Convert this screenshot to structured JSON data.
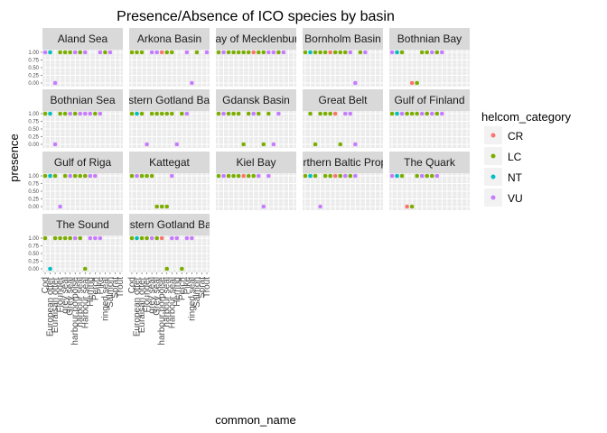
{
  "chart_data": {
    "type": "scatter",
    "title": "Presence/Absence of ICO species by basin",
    "xlabel": "common_name",
    "ylabel": "presence",
    "ylim": [
      0,
      1
    ],
    "y_ticks": [
      "0.00",
      "0.25",
      "0.50",
      "0.75",
      "1.00"
    ],
    "legend_title": "helcom_category",
    "legend_position": "right",
    "grid": true,
    "categories": [
      "Cod",
      "European otter",
      "Euraisan otter",
      "Flounder",
      "grey seal",
      "Grey seal",
      "harbour porpoise",
      "harbour seal",
      "Harbour seal",
      "Herring",
      "Perch",
      "Pike",
      "ringed seal",
      "Salmon",
      "Sprat",
      "Trout"
    ],
    "colors": {
      "CR": "#F8766D",
      "LC": "#7CAE00",
      "NT": "#00BFC4",
      "VU": "#C77CFF"
    },
    "series": [
      {
        "name": "CR"
      },
      {
        "name": "LC"
      },
      {
        "name": "NT"
      },
      {
        "name": "VU"
      }
    ],
    "panels": [
      {
        "basin": "Aland Sea",
        "cat": [
          "VU",
          "NT",
          "VU",
          "LC",
          "LC",
          "LC",
          "VU",
          "LC",
          "VU",
          "VU",
          "LC",
          "VU"
        ],
        "x": [
          1,
          2,
          3,
          4,
          5,
          6,
          7,
          8,
          9,
          12,
          13,
          14
        ],
        "y": [
          1,
          1,
          0,
          1,
          1,
          1,
          1,
          1,
          1,
          1,
          1,
          1
        ]
      },
      {
        "basin": "Arkona Basin",
        "cat": [
          "LC",
          "LC",
          "LC",
          "VU",
          "VU",
          "CR",
          "LC",
          "LC",
          "VU",
          "VU",
          "LC",
          "VU"
        ],
        "x": [
          1,
          2,
          3,
          5,
          6,
          7,
          8,
          9,
          12,
          13,
          14,
          16
        ],
        "y": [
          1,
          1,
          1,
          1,
          1,
          1,
          1,
          1,
          1,
          0,
          1,
          1
        ]
      },
      {
        "basin": "Bay of Mecklenburg",
        "cat": [
          "LC",
          "VU",
          "LC",
          "LC",
          "LC",
          "LC",
          "LC",
          "CR",
          "LC",
          "LC",
          "VU",
          "VU",
          "LC",
          "VU"
        ],
        "x": [
          1,
          2,
          3,
          4,
          5,
          6,
          7,
          8,
          9,
          10,
          11,
          12,
          13,
          14
        ],
        "y": [
          1,
          1,
          1,
          1,
          1,
          1,
          1,
          1,
          1,
          1,
          1,
          1,
          1,
          1
        ]
      },
      {
        "basin": "Bornholm Basin",
        "cat": [
          "LC",
          "NT",
          "LC",
          "LC",
          "LC",
          "CR",
          "LC",
          "LC",
          "LC",
          "VU",
          "VU",
          "LC",
          "VU"
        ],
        "x": [
          1,
          2,
          3,
          4,
          5,
          6,
          7,
          8,
          9,
          10,
          11,
          12,
          13
        ],
        "y": [
          1,
          1,
          1,
          1,
          1,
          1,
          1,
          1,
          1,
          1,
          0,
          1,
          1
        ]
      },
      {
        "basin": "Bothnian Bay",
        "cat": [
          "VU",
          "NT",
          "LC",
          "CR",
          "LC",
          "LC",
          "LC",
          "VU",
          "LC",
          "VU"
        ],
        "x": [
          1,
          2,
          3,
          5,
          6,
          7,
          8,
          9,
          10,
          11
        ],
        "y": [
          1,
          1,
          1,
          0,
          0,
          1,
          1,
          1,
          1,
          1
        ]
      },
      {
        "basin": "Bothnian Sea",
        "cat": [
          "LC",
          "NT",
          "VU",
          "LC",
          "LC",
          "VU",
          "LC",
          "VU",
          "VU",
          "VU",
          "LC",
          "VU"
        ],
        "x": [
          1,
          2,
          3,
          4,
          5,
          6,
          7,
          8,
          9,
          10,
          11,
          12
        ],
        "y": [
          1,
          1,
          0,
          1,
          1,
          1,
          1,
          1,
          1,
          1,
          1,
          1
        ]
      },
      {
        "basin": "Eastern Gotland Basin",
        "cat": [
          "LC",
          "NT",
          "LC",
          "VU",
          "LC",
          "LC",
          "LC",
          "LC",
          "LC",
          "VU",
          "LC",
          "VU"
        ],
        "x": [
          1,
          2,
          3,
          4,
          5,
          6,
          7,
          8,
          9,
          10,
          11,
          12
        ],
        "y": [
          1,
          1,
          1,
          0,
          1,
          1,
          1,
          1,
          1,
          0,
          1,
          1
        ]
      },
      {
        "basin": "Gdansk Basin",
        "cat": [
          "LC",
          "VU",
          "LC",
          "LC",
          "LC",
          "LC",
          "LC",
          "VU",
          "LC",
          "LC",
          "LC",
          "VU",
          "VU"
        ],
        "x": [
          1,
          2,
          3,
          4,
          5,
          6,
          7,
          8,
          9,
          10,
          11,
          12,
          13
        ],
        "y": [
          1,
          1,
          1,
          1,
          1,
          0,
          1,
          1,
          1,
          0,
          1,
          0,
          1
        ]
      },
      {
        "basin": "Great Belt",
        "cat": [
          "LC",
          "LC",
          "LC",
          "LC",
          "LC",
          "CR",
          "LC",
          "VU",
          "VU",
          "VU"
        ],
        "x": [
          2,
          3,
          4,
          5,
          6,
          7,
          8,
          9,
          10,
          11
        ],
        "y": [
          1,
          0,
          1,
          1,
          1,
          1,
          0,
          1,
          1,
          0
        ]
      },
      {
        "basin": "Gulf of Finland",
        "cat": [
          "LC",
          "NT",
          "VU",
          "LC",
          "LC",
          "LC",
          "VU",
          "LC",
          "VU",
          "LC",
          "VU"
        ],
        "x": [
          1,
          2,
          3,
          4,
          5,
          6,
          7,
          8,
          9,
          10,
          11
        ],
        "y": [
          1,
          1,
          1,
          1,
          1,
          1,
          1,
          1,
          1,
          1,
          1
        ]
      },
      {
        "basin": "Gulf of Riga",
        "cat": [
          "LC",
          "NT",
          "LC",
          "VU",
          "LC",
          "VU",
          "LC",
          "LC",
          "LC",
          "VU",
          "VU"
        ],
        "x": [
          1,
          2,
          3,
          4,
          5,
          6,
          7,
          8,
          9,
          10,
          11
        ],
        "y": [
          1,
          1,
          1,
          0,
          1,
          1,
          1,
          1,
          1,
          1,
          1
        ]
      },
      {
        "basin": "Kattegat",
        "cat": [
          "LC",
          "VU",
          "LC",
          "LC",
          "LC",
          "LC",
          "LC",
          "LC",
          "VU"
        ],
        "x": [
          1,
          2,
          3,
          4,
          5,
          6,
          7,
          8,
          9
        ],
        "y": [
          1,
          1,
          1,
          1,
          1,
          0,
          0,
          0,
          1
        ]
      },
      {
        "basin": "Kiel Bay",
        "cat": [
          "LC",
          "VU",
          "LC",
          "LC",
          "LC",
          "CR",
          "LC",
          "LC",
          "VU",
          "VU",
          "VU"
        ],
        "x": [
          1,
          2,
          3,
          4,
          5,
          6,
          7,
          8,
          9,
          10,
          11
        ],
        "y": [
          1,
          1,
          1,
          1,
          1,
          1,
          1,
          1,
          1,
          0,
          1
        ]
      },
      {
        "basin": "Northern Baltic Proper",
        "cat": [
          "LC",
          "NT",
          "LC",
          "VU",
          "LC",
          "LC",
          "CR",
          "LC",
          "VU",
          "LC",
          "VU"
        ],
        "x": [
          1,
          2,
          3,
          4,
          5,
          6,
          7,
          8,
          9,
          10,
          11
        ],
        "y": [
          1,
          1,
          1,
          0,
          1,
          1,
          1,
          1,
          1,
          1,
          1
        ]
      },
      {
        "basin": "The Quark",
        "cat": [
          "VU",
          "NT",
          "LC",
          "CR",
          "LC",
          "LC",
          "VU",
          "LC",
          "LC",
          "VU"
        ],
        "x": [
          1,
          2,
          3,
          4,
          5,
          6,
          7,
          8,
          9,
          10
        ],
        "y": [
          1,
          1,
          1,
          0,
          0,
          1,
          1,
          1,
          1,
          1
        ]
      },
      {
        "basin": "The Sound",
        "cat": [
          "LC",
          "NT",
          "LC",
          "LC",
          "LC",
          "LC",
          "VU",
          "LC",
          "LC",
          "VU",
          "VU",
          "VU"
        ],
        "x": [
          1,
          2,
          3,
          4,
          5,
          6,
          7,
          8,
          9,
          10,
          11,
          12
        ],
        "y": [
          1,
          0,
          1,
          1,
          1,
          1,
          1,
          1,
          0,
          1,
          1,
          1
        ]
      },
      {
        "basin": "Western Gotland Basin",
        "cat": [
          "LC",
          "NT",
          "LC",
          "LC",
          "VU",
          "LC",
          "CR",
          "LC",
          "VU",
          "VU",
          "LC",
          "VU",
          "VU"
        ],
        "x": [
          1,
          2,
          3,
          4,
          5,
          6,
          7,
          8,
          9,
          10,
          11,
          12,
          13
        ],
        "y": [
          1,
          1,
          1,
          1,
          1,
          1,
          1,
          0,
          1,
          1,
          0,
          1,
          1
        ]
      }
    ]
  }
}
